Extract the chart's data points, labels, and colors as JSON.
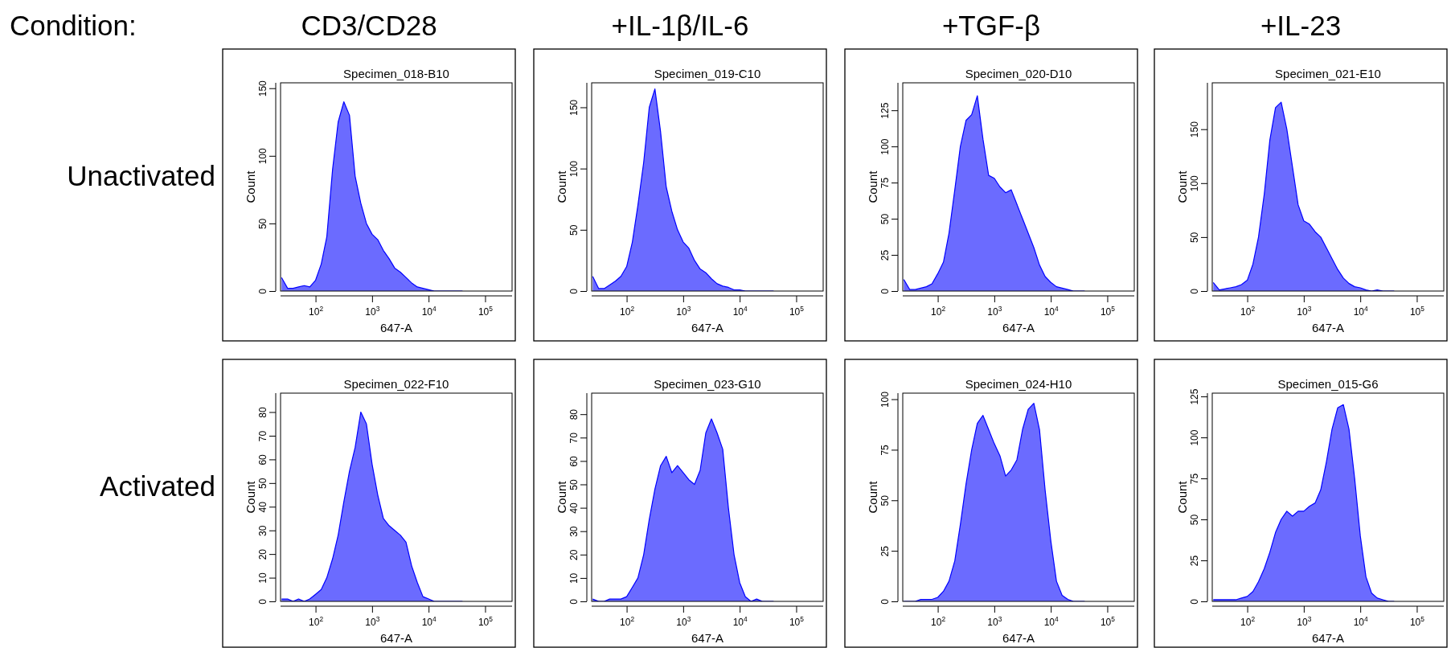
{
  "chart_data": [
    {
      "type": "other",
      "annotations": [
        "Condition:",
        "CD3/CD28",
        "+IL-1β/IL-6",
        "+TGF-β",
        "+IL-23",
        "Unactivated",
        "Activated"
      ]
    },
    {
      "type": "area",
      "title": "Specimen_018-B10",
      "xlabel": "647-A",
      "ylabel": "Count",
      "log": "x",
      "xlim": [
        24,
        300000
      ],
      "ylim": [
        0,
        154
      ],
      "xticks": [
        {
          "value": 100,
          "label": "10$^{2}$"
        },
        {
          "value": 1000,
          "label": "10$^{3}$"
        },
        {
          "value": 10000,
          "label": "10$^{4}$"
        },
        {
          "value": 100000,
          "label": "10$^{5}$"
        }
      ],
      "yticks": [
        0,
        50,
        100,
        150
      ],
      "x": [
        25,
        32,
        40,
        50,
        63,
        79,
        100,
        126,
        158,
        200,
        251,
        316,
        398,
        501,
        631,
        794,
        1000,
        1259,
        1585,
        1995,
        2512,
        3162,
        3981,
        5012,
        6310,
        7943,
        10000,
        12589,
        15849,
        19953,
        25119,
        31623,
        39811
      ],
      "series": [
        {
          "color": "#0000ff",
          "values": [
            10,
            2,
            2,
            3,
            4,
            3,
            8,
            20,
            40,
            90,
            125,
            140,
            130,
            85,
            65,
            50,
            42,
            38,
            30,
            24,
            17,
            14,
            10,
            6,
            3,
            2,
            1,
            0,
            0,
            0,
            0,
            0,
            0
          ]
        }
      ]
    },
    {
      "type": "area",
      "title": "Specimen_019-C10",
      "xlabel": "647-A",
      "ylabel": "Count",
      "log": "x",
      "xlim": [
        24,
        300000
      ],
      "ylim": [
        0,
        170
      ],
      "xticks": [
        {
          "value": 100,
          "label": "10$^{2}$"
        },
        {
          "value": 1000,
          "label": "10$^{3}$"
        },
        {
          "value": 10000,
          "label": "10$^{4}$"
        },
        {
          "value": 100000,
          "label": "10$^{5}$"
        }
      ],
      "yticks": [
        0,
        50,
        100,
        150
      ],
      "x": [
        25,
        32,
        40,
        50,
        63,
        79,
        100,
        126,
        158,
        200,
        251,
        316,
        398,
        501,
        631,
        794,
        1000,
        1259,
        1585,
        1995,
        2512,
        3162,
        3981,
        5012,
        6310,
        7943,
        10000,
        12589,
        15849,
        19953,
        25119,
        31623,
        39811
      ],
      "series": [
        {
          "color": "#0000ff",
          "values": [
            12,
            2,
            2,
            5,
            8,
            12,
            20,
            40,
            70,
            105,
            150,
            165,
            130,
            85,
            65,
            50,
            40,
            35,
            25,
            18,
            15,
            10,
            6,
            4,
            3,
            1,
            1,
            0,
            0,
            0,
            0,
            0,
            0
          ]
        }
      ]
    },
    {
      "type": "area",
      "title": "Specimen_020-D10",
      "xlabel": "647-A",
      "ylabel": "Count",
      "log": "x",
      "xlim": [
        24,
        300000
      ],
      "ylim": [
        0,
        144
      ],
      "xticks": [
        {
          "value": 100,
          "label": "10$^{2}$"
        },
        {
          "value": 1000,
          "label": "10$^{3}$"
        },
        {
          "value": 10000,
          "label": "10$^{4}$"
        },
        {
          "value": 100000,
          "label": "10$^{5}$"
        }
      ],
      "yticks": [
        0,
        25,
        50,
        75,
        100,
        125
      ],
      "x": [
        25,
        32,
        40,
        50,
        63,
        79,
        100,
        126,
        158,
        200,
        251,
        316,
        398,
        501,
        631,
        794,
        1000,
        1259,
        1585,
        1995,
        2512,
        3162,
        3981,
        5012,
        6310,
        7943,
        10000,
        12589,
        15849,
        19953,
        25119,
        31623,
        39811
      ],
      "series": [
        {
          "color": "#0000ff",
          "values": [
            8,
            1,
            1,
            2,
            3,
            5,
            12,
            20,
            40,
            70,
            100,
            118,
            122,
            135,
            105,
            80,
            78,
            72,
            68,
            70,
            60,
            50,
            40,
            30,
            18,
            10,
            6,
            3,
            2,
            1,
            0,
            0,
            0
          ]
        }
      ]
    },
    {
      "type": "area",
      "title": "Specimen_021-E10",
      "xlabel": "647-A",
      "ylabel": "Count",
      "log": "x",
      "xlim": [
        24,
        300000
      ],
      "ylim": [
        0,
        193
      ],
      "xticks": [
        {
          "value": 100,
          "label": "10$^{2}$"
        },
        {
          "value": 1000,
          "label": "10$^{3}$"
        },
        {
          "value": 10000,
          "label": "10$^{4}$"
        },
        {
          "value": 100000,
          "label": "10$^{5}$"
        }
      ],
      "yticks": [
        0,
        50,
        100,
        150
      ],
      "x": [
        25,
        32,
        40,
        50,
        63,
        79,
        100,
        126,
        158,
        200,
        251,
        316,
        398,
        501,
        631,
        794,
        1000,
        1259,
        1585,
        1995,
        2512,
        3162,
        3981,
        5012,
        6310,
        7943,
        10000,
        12589,
        15849,
        19953,
        25119,
        31623,
        39811
      ],
      "series": [
        {
          "color": "#0000ff",
          "values": [
            8,
            1,
            2,
            3,
            4,
            6,
            10,
            25,
            50,
            90,
            140,
            170,
            175,
            150,
            115,
            80,
            65,
            62,
            55,
            50,
            40,
            30,
            20,
            12,
            7,
            4,
            3,
            1,
            0,
            1,
            0,
            0,
            0
          ]
        }
      ]
    },
    {
      "type": "area",
      "title": "Specimen_022-F10",
      "xlabel": "647-A",
      "ylabel": "Count",
      "log": "x",
      "xlim": [
        24,
        300000
      ],
      "ylim": [
        0,
        88
      ],
      "xticks": [
        {
          "value": 100,
          "label": "10$^{2}$"
        },
        {
          "value": 1000,
          "label": "10$^{3}$"
        },
        {
          "value": 10000,
          "label": "10$^{4}$"
        },
        {
          "value": 100000,
          "label": "10$^{5}$"
        }
      ],
      "yticks": [
        0,
        10,
        20,
        30,
        40,
        50,
        60,
        70,
        80
      ],
      "x": [
        25,
        32,
        40,
        50,
        63,
        79,
        100,
        126,
        158,
        200,
        251,
        316,
        398,
        501,
        631,
        794,
        1000,
        1259,
        1585,
        1995,
        2512,
        3162,
        3981,
        5012,
        6310,
        7943,
        10000,
        12589,
        15849,
        19953,
        25119,
        31623,
        39811
      ],
      "series": [
        {
          "color": "#0000ff",
          "values": [
            1,
            1,
            0,
            1,
            0,
            1,
            3,
            5,
            10,
            18,
            28,
            42,
            55,
            65,
            80,
            75,
            58,
            45,
            35,
            32,
            30,
            28,
            25,
            15,
            8,
            2,
            1,
            0,
            0,
            0,
            0,
            0,
            0
          ]
        }
      ]
    },
    {
      "type": "area",
      "title": "Specimen_023-G10",
      "xlabel": "647-A",
      "ylabel": "Count",
      "log": "x",
      "xlim": [
        24,
        300000
      ],
      "ylim": [
        0,
        89
      ],
      "xticks": [
        {
          "value": 100,
          "label": "10$^{2}$"
        },
        {
          "value": 1000,
          "label": "10$^{3}$"
        },
        {
          "value": 10000,
          "label": "10$^{4}$"
        },
        {
          "value": 100000,
          "label": "10$^{5}$"
        }
      ],
      "yticks": [
        0,
        10,
        20,
        30,
        40,
        50,
        60,
        70,
        80
      ],
      "x": [
        25,
        32,
        40,
        50,
        63,
        79,
        100,
        126,
        158,
        200,
        251,
        316,
        398,
        501,
        631,
        794,
        1000,
        1259,
        1585,
        1995,
        2512,
        3162,
        3981,
        5012,
        6310,
        7943,
        10000,
        12589,
        15849,
        19953,
        25119,
        31623,
        39811
      ],
      "series": [
        {
          "color": "#0000ff",
          "values": [
            1,
            0,
            0,
            1,
            1,
            1,
            2,
            6,
            10,
            20,
            35,
            48,
            58,
            62,
            55,
            58,
            55,
            52,
            50,
            56,
            72,
            78,
            72,
            65,
            40,
            20,
            8,
            2,
            0,
            1,
            0,
            0,
            0
          ]
        }
      ]
    },
    {
      "type": "area",
      "title": "Specimen_024-H10",
      "xlabel": "647-A",
      "ylabel": "Count",
      "log": "x",
      "xlim": [
        24,
        300000
      ],
      "ylim": [
        0,
        103
      ],
      "xticks": [
        {
          "value": 100,
          "label": "10$^{2}$"
        },
        {
          "value": 1000,
          "label": "10$^{3}$"
        },
        {
          "value": 10000,
          "label": "10$^{4}$"
        },
        {
          "value": 100000,
          "label": "10$^{5}$"
        }
      ],
      "yticks": [
        0,
        25,
        50,
        75,
        100
      ],
      "x": [
        25,
        32,
        40,
        50,
        63,
        79,
        100,
        126,
        158,
        200,
        251,
        316,
        398,
        501,
        631,
        794,
        1000,
        1259,
        1585,
        1995,
        2512,
        3162,
        3981,
        5012,
        6310,
        7943,
        10000,
        12589,
        15849,
        19953,
        25119,
        31623,
        39811
      ],
      "series": [
        {
          "color": "#0000ff",
          "values": [
            0,
            0,
            0,
            1,
            1,
            1,
            2,
            5,
            10,
            20,
            38,
            58,
            75,
            88,
            92,
            85,
            78,
            72,
            62,
            65,
            70,
            85,
            95,
            98,
            85,
            55,
            30,
            10,
            3,
            1,
            0,
            0,
            0
          ]
        }
      ]
    },
    {
      "type": "area",
      "title": "Specimen_015-G6",
      "xlabel": "647-A",
      "ylabel": "Count",
      "log": "x",
      "xlim": [
        24,
        300000
      ],
      "ylim": [
        0,
        127
      ],
      "xticks": [
        {
          "value": 100,
          "label": "10$^{2}$"
        },
        {
          "value": 1000,
          "label": "10$^{3}$"
        },
        {
          "value": 10000,
          "label": "10$^{4}$"
        },
        {
          "value": 100000,
          "label": "10$^{5}$"
        }
      ],
      "yticks": [
        0,
        25,
        50,
        75,
        100,
        125
      ],
      "x": [
        25,
        32,
        40,
        50,
        63,
        79,
        100,
        126,
        158,
        200,
        251,
        316,
        398,
        501,
        631,
        794,
        1000,
        1259,
        1585,
        1995,
        2512,
        3162,
        3981,
        5012,
        6310,
        7943,
        10000,
        12589,
        15849,
        19953,
        25119,
        31623,
        39811
      ],
      "series": [
        {
          "color": "#0000ff",
          "values": [
            1,
            1,
            1,
            1,
            1,
            2,
            3,
            6,
            12,
            20,
            30,
            42,
            50,
            55,
            52,
            55,
            55,
            58,
            60,
            68,
            85,
            105,
            118,
            120,
            105,
            75,
            40,
            15,
            5,
            2,
            1,
            0,
            0
          ]
        }
      ]
    }
  ]
}
